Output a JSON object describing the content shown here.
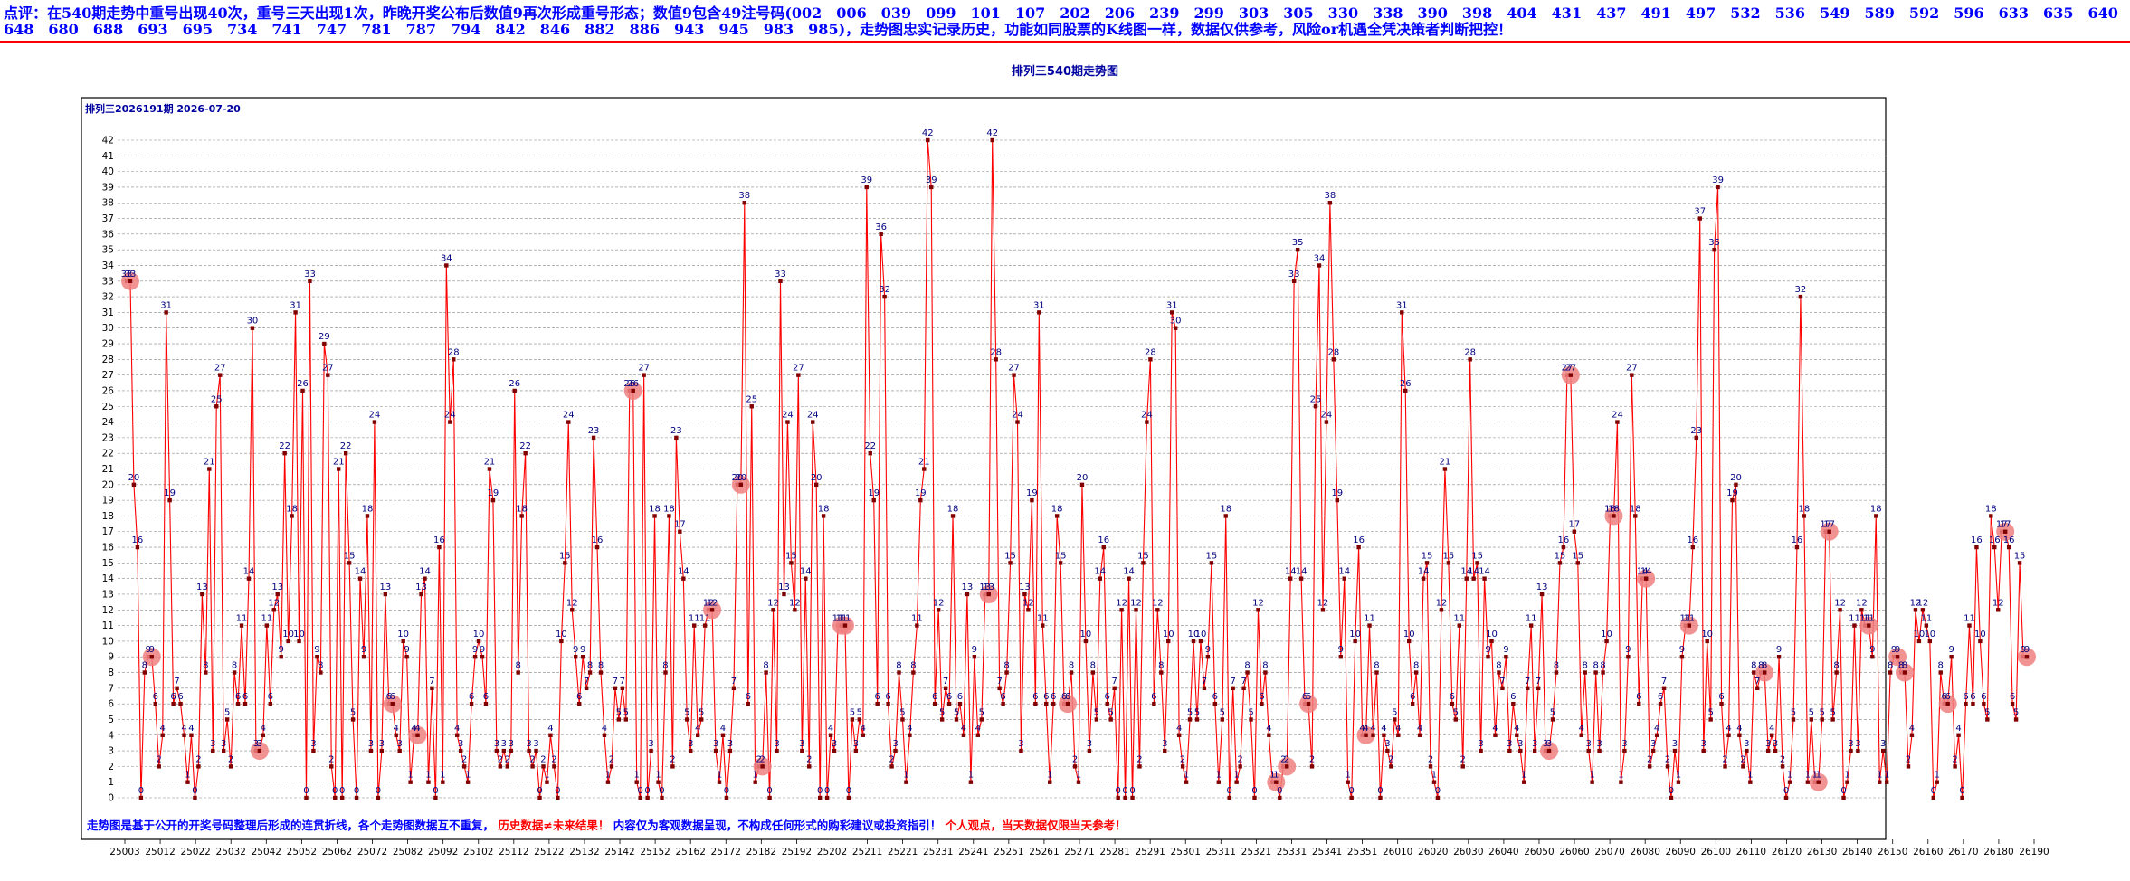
{
  "header": {
    "text": "点评：在540期走势中重号出现40次，重号三天出现1次，昨晚开奖公布后数值9再次形成重号形态；数值9包含49注号码(002　006　039　099　101　107　202　206　239　299　303　305　330　338　390　398　404　431　437　491　497　532　536　549　589　592　596　633　635　640　648　680　688　693　695　734　741　747　781　787　794　842　846　882　886　943　945　983　985)，走势图忠实记录历史，功能如同股票的K线图一样，数据仅供参考，风险or机遇全凭决策者判断把控！"
  },
  "chart": {
    "title": "排列三540期走势图",
    "inner_title": "排列三2026191期 2026-07-20",
    "footer_part1": "走势图是基于公开的开奖号码整理后形成的连贯折线，各个走势图数据互不重复，",
    "footer_part2": "历史数据≠未来结果！",
    "footer_part3": "内容仅为客观数据呈现，不构成任何形式的购彩建议或投资指引！",
    "footer_part4": "个人观点，当天数据仅限当天参考！",
    "colors": {
      "line": "#ff0000",
      "point": "#800000",
      "value_label": "#000080",
      "repeat_marker": "#f08080",
      "highlight_marker": "#6a6ae8",
      "frame": "#000000",
      "grid": "#888888"
    }
  },
  "chart_data": {
    "type": "line",
    "title": "排列三540期走势图",
    "subtitle": "排列三2026191期 2026-07-20",
    "ylim": [
      0,
      42
    ],
    "y_ticks": [
      0,
      1,
      2,
      3,
      4,
      5,
      6,
      7,
      8,
      9,
      10,
      11,
      12,
      13,
      14,
      15,
      16,
      17,
      18,
      19,
      20,
      21,
      22,
      23,
      24,
      25,
      26,
      27,
      28,
      29,
      30,
      31,
      32,
      33,
      34,
      35,
      36,
      37,
      38,
      39,
      40,
      41,
      42
    ],
    "x_tick_labels": [
      "25003",
      "25012",
      "25022",
      "25032",
      "25042",
      "25052",
      "25062",
      "25072",
      "25082",
      "25092",
      "25102",
      "25112",
      "25122",
      "25132",
      "25142",
      "25152",
      "25162",
      "25172",
      "25182",
      "25192",
      "25202",
      "25211",
      "25221",
      "25231",
      "25241",
      "25251",
      "25261",
      "25271",
      "25281",
      "25291",
      "25301",
      "25311",
      "25321",
      "25331",
      "25341",
      "25351",
      "26010",
      "26020",
      "26030",
      "26040",
      "26050",
      "26060",
      "26070",
      "26080",
      "26090",
      "26100",
      "26110",
      "26120",
      "26130",
      "26140",
      "26150",
      "26160",
      "26170",
      "26180",
      "26190"
    ],
    "grid": true,
    "legend": "none",
    "series": [
      {
        "values": [
          33,
          33,
          20,
          16,
          0,
          8,
          9,
          9,
          6,
          2,
          4,
          31,
          19,
          6,
          7,
          6,
          4,
          1,
          4,
          0,
          2,
          13,
          8,
          21,
          3,
          25,
          27,
          3,
          5,
          2,
          8,
          6,
          11,
          6,
          14,
          30,
          3,
          3,
          4,
          11,
          6,
          12,
          13,
          9,
          22,
          10,
          18,
          31,
          10,
          26,
          0,
          33,
          3,
          9,
          8,
          29,
          27,
          2,
          0,
          21,
          0,
          22,
          15,
          5,
          0,
          14,
          9,
          18,
          3,
          24,
          0,
          3,
          13,
          6,
          6,
          4,
          3,
          10,
          9,
          1,
          4,
          4,
          13,
          14,
          1,
          7,
          0,
          16,
          1,
          34,
          24,
          28,
          4,
          3,
          2,
          1,
          6,
          9,
          10,
          9,
          6,
          21,
          19,
          3,
          2,
          3,
          2,
          3,
          26,
          8,
          18,
          22,
          3,
          2,
          3,
          0,
          2,
          1,
          4,
          2,
          0,
          10,
          15,
          24,
          12,
          9,
          6,
          9,
          7,
          8,
          23,
          16,
          8,
          4,
          1,
          2,
          7,
          5,
          7,
          5,
          26,
          26,
          1,
          0,
          27,
          0,
          3,
          18,
          1,
          0,
          8,
          18,
          2,
          23,
          17,
          14,
          5,
          3,
          11,
          4,
          5,
          11,
          12,
          12,
          3,
          1,
          4,
          0,
          3,
          7,
          20,
          20,
          38,
          6,
          25,
          1,
          2,
          2,
          8,
          0,
          12,
          3,
          33,
          13,
          24,
          15,
          12,
          27,
          3,
          14,
          2,
          24,
          20,
          0,
          18,
          0,
          4,
          3,
          11,
          11,
          11,
          0,
          5,
          3,
          5,
          4,
          39,
          22,
          19,
          6,
          36,
          32,
          6,
          2,
          3,
          8,
          5,
          1,
          4,
          8,
          11,
          19,
          21,
          42,
          39,
          6,
          12,
          5,
          7,
          6,
          18,
          5,
          6,
          4,
          13,
          1,
          9,
          4,
          5,
          13,
          13,
          42,
          28,
          7,
          6,
          8,
          15,
          27,
          24,
          3,
          13,
          12,
          19,
          6,
          31,
          11,
          6,
          1,
          6,
          18,
          15,
          6,
          6,
          8,
          2,
          1,
          20,
          10,
          3,
          8,
          5,
          14,
          16,
          6,
          5,
          7,
          0,
          12,
          0,
          14,
          0,
          12,
          2,
          15,
          24,
          28,
          6,
          12,
          8,
          3,
          10,
          31,
          30,
          4,
          2,
          1,
          5,
          10,
          5,
          10,
          7,
          9,
          15,
          6,
          1,
          5,
          18,
          0,
          7,
          1,
          2,
          7,
          8,
          5,
          0,
          12,
          6,
          8,
          4,
          1,
          1,
          0,
          2,
          2,
          14,
          33,
          35,
          14,
          6,
          6,
          2,
          25,
          34,
          12,
          24,
          38,
          28,
          19,
          9,
          14,
          1,
          0,
          10,
          16,
          4,
          4,
          11,
          4,
          8,
          0,
          4,
          3,
          2,
          5,
          4,
          31,
          26,
          10,
          6,
          8,
          4,
          14,
          15,
          2,
          1,
          0,
          12,
          21,
          15,
          6,
          5,
          11,
          2,
          14,
          28,
          14,
          15,
          3,
          14,
          9,
          10,
          4,
          8,
          7,
          9,
          3,
          6,
          4,
          3,
          1,
          7,
          11,
          3,
          7,
          13,
          3,
          3,
          5,
          8,
          15,
          16,
          27,
          27,
          17,
          15,
          4,
          8,
          3,
          1,
          8,
          3,
          8,
          10,
          18,
          18,
          24,
          1,
          3,
          9,
          27,
          18,
          6,
          14,
          14,
          2,
          3,
          4,
          6,
          7,
          2,
          0,
          3,
          1,
          9,
          11,
          11,
          16,
          23,
          37,
          3,
          10,
          5,
          35,
          39,
          6,
          2,
          4,
          19,
          20,
          4,
          2,
          3,
          1,
          8,
          7,
          8,
          8,
          3,
          4,
          3,
          9,
          2,
          0,
          1,
          5,
          16,
          32,
          18,
          1,
          5,
          1,
          1,
          5,
          17,
          17,
          5,
          8,
          12,
          0,
          1,
          3,
          11,
          3,
          12,
          11,
          11,
          9,
          18,
          1,
          3,
          1,
          8,
          9,
          9,
          8,
          8,
          2,
          4,
          12,
          10,
          12,
          11,
          10,
          0,
          1,
          8,
          6,
          6,
          9,
          2,
          4,
          0,
          6,
          11,
          6,
          16,
          10,
          6,
          5,
          18,
          16,
          12,
          17,
          17,
          16,
          6,
          5,
          15,
          9,
          9
        ]
      }
    ]
  }
}
